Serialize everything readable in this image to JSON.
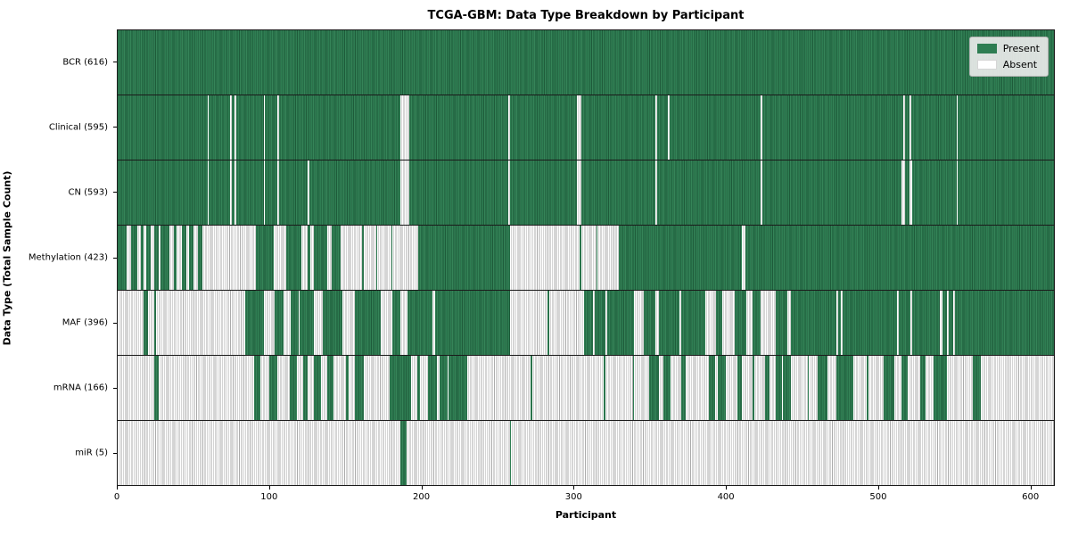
{
  "title": "TCGA-GBM: Data Type Breakdown by Participant",
  "axes": {
    "x_label": "Participant",
    "y_label": "Data Type (Total Sample Count)"
  },
  "legend": {
    "items": [
      {
        "label": "Present",
        "color": "#2e7d52"
      },
      {
        "label": "Absent",
        "color": "#ffffff"
      }
    ]
  },
  "colors": {
    "present": "#2e7d52",
    "present_edge": "#1e5b3a",
    "absent": "#ffffff",
    "absent_edge": "#ababab",
    "divider": "#1a1a1a",
    "legend_bg": "#eaeaea"
  },
  "chart_data": {
    "type": "heatmap",
    "title": "TCGA-GBM: Data Type Breakdown by Participant",
    "xlabel": "Participant",
    "ylabel": "Data Type (Total Sample Count)",
    "legend": [
      "Present",
      "Absent"
    ],
    "legend_position": "upper right",
    "n_participants": 616,
    "xlim": [
      0,
      616
    ],
    "x_ticks": [
      0,
      100,
      200,
      300,
      400,
      500,
      600
    ],
    "note": "runs are [value,count] pairs per participant index; 1=Present(green), 0=Absent(white)",
    "rows": [
      {
        "name": "BCR",
        "label": "BCR (616)",
        "present_count": 616,
        "runs": [
          [
            1,
            616
          ]
        ]
      },
      {
        "name": "Clinical",
        "label": "Clinical (595)",
        "present_count": 595,
        "runs": [
          [
            1,
            59
          ],
          [
            0,
            1
          ],
          [
            1,
            14
          ],
          [
            0,
            1
          ],
          [
            1,
            2
          ],
          [
            0,
            1
          ],
          [
            1,
            18
          ],
          [
            0,
            1
          ],
          [
            1,
            8
          ],
          [
            0,
            1
          ],
          [
            1,
            80
          ],
          [
            0,
            6
          ],
          [
            1,
            65
          ],
          [
            0,
            1
          ],
          [
            1,
            44
          ],
          [
            0,
            3
          ],
          [
            1,
            49
          ],
          [
            0,
            1
          ],
          [
            1,
            7
          ],
          [
            0,
            1
          ],
          [
            1,
            60
          ],
          [
            0,
            1
          ],
          [
            1,
            93
          ],
          [
            0,
            1
          ],
          [
            1,
            3
          ],
          [
            0,
            1
          ],
          [
            1,
            30
          ],
          [
            0,
            1
          ],
          [
            1,
            63
          ]
        ]
      },
      {
        "name": "CN",
        "label": "CN (593)",
        "present_count": 593,
        "runs": [
          [
            1,
            59
          ],
          [
            0,
            1
          ],
          [
            1,
            14
          ],
          [
            0,
            1
          ],
          [
            1,
            2
          ],
          [
            0,
            1
          ],
          [
            1,
            18
          ],
          [
            0,
            1
          ],
          [
            1,
            8
          ],
          [
            0,
            1
          ],
          [
            1,
            19
          ],
          [
            0,
            1
          ],
          [
            1,
            60
          ],
          [
            0,
            6
          ],
          [
            1,
            65
          ],
          [
            0,
            1
          ],
          [
            1,
            44
          ],
          [
            0,
            3
          ],
          [
            1,
            49
          ],
          [
            0,
            1
          ],
          [
            1,
            68
          ],
          [
            0,
            1
          ],
          [
            1,
            92
          ],
          [
            0,
            2
          ],
          [
            1,
            3
          ],
          [
            0,
            2
          ],
          [
            1,
            29
          ],
          [
            0,
            1
          ],
          [
            1,
            63
          ]
        ]
      },
      {
        "name": "Methylation",
        "label": "Methylation (423)",
        "present_count": 423,
        "runs": [
          [
            1,
            6
          ],
          [
            0,
            3
          ],
          [
            1,
            4
          ],
          [
            0,
            2
          ],
          [
            1,
            2
          ],
          [
            0,
            2
          ],
          [
            1,
            3
          ],
          [
            0,
            2
          ],
          [
            1,
            3
          ],
          [
            0,
            1
          ],
          [
            1,
            6
          ],
          [
            0,
            3
          ],
          [
            1,
            2
          ],
          [
            0,
            3
          ],
          [
            1,
            3
          ],
          [
            0,
            2
          ],
          [
            1,
            3
          ],
          [
            0,
            3
          ],
          [
            1,
            3
          ],
          [
            0,
            35
          ],
          [
            1,
            12
          ],
          [
            0,
            8
          ],
          [
            1,
            10
          ],
          [
            0,
            4
          ],
          [
            1,
            2
          ],
          [
            0,
            2
          ],
          [
            1,
            9
          ],
          [
            0,
            3
          ],
          [
            1,
            6
          ],
          [
            0,
            14
          ],
          [
            1,
            1
          ],
          [
            0,
            8
          ],
          [
            1,
            1
          ],
          [
            0,
            9
          ],
          [
            1,
            1
          ],
          [
            0,
            17
          ],
          [
            1,
            60
          ],
          [
            0,
            46
          ],
          [
            1,
            1
          ],
          [
            0,
            10
          ],
          [
            1,
            1
          ],
          [
            0,
            14
          ],
          [
            1,
            81
          ],
          [
            0,
            2
          ],
          [
            1,
            203
          ]
        ]
      },
      {
        "name": "MAF",
        "label": "MAF (396)",
        "present_count": 396,
        "runs": [
          [
            0,
            17
          ],
          [
            1,
            3
          ],
          [
            0,
            4
          ],
          [
            1,
            1
          ],
          [
            0,
            59
          ],
          [
            1,
            12
          ],
          [
            0,
            7
          ],
          [
            1,
            6
          ],
          [
            0,
            5
          ],
          [
            1,
            5
          ],
          [
            0,
            1
          ],
          [
            1,
            9
          ],
          [
            0,
            6
          ],
          [
            1,
            13
          ],
          [
            0,
            8
          ],
          [
            1,
            17
          ],
          [
            0,
            8
          ],
          [
            1,
            5
          ],
          [
            0,
            5
          ],
          [
            1,
            16
          ],
          [
            0,
            2
          ],
          [
            1,
            49
          ],
          [
            0,
            25
          ],
          [
            1,
            1
          ],
          [
            0,
            23
          ],
          [
            1,
            6
          ],
          [
            0,
            1
          ],
          [
            1,
            7
          ],
          [
            0,
            1
          ],
          [
            1,
            18
          ],
          [
            0,
            6
          ],
          [
            1,
            8
          ],
          [
            0,
            2
          ],
          [
            1,
            14
          ],
          [
            0,
            1
          ],
          [
            1,
            16
          ],
          [
            0,
            7
          ],
          [
            1,
            4
          ],
          [
            0,
            8
          ],
          [
            1,
            8
          ],
          [
            0,
            4
          ],
          [
            1,
            5
          ],
          [
            0,
            10
          ],
          [
            1,
            8
          ],
          [
            0,
            2
          ],
          [
            1,
            30
          ],
          [
            0,
            1
          ],
          [
            1,
            2
          ],
          [
            0,
            1
          ],
          [
            1,
            36
          ],
          [
            0,
            1
          ],
          [
            1,
            8
          ],
          [
            0,
            1
          ],
          [
            1,
            18
          ],
          [
            0,
            2
          ],
          [
            1,
            3
          ],
          [
            0,
            1
          ],
          [
            1,
            3
          ],
          [
            0,
            1
          ],
          [
            1,
            65
          ]
        ]
      },
      {
        "name": "mRNA",
        "label": "mRNA (166)",
        "present_count": 166,
        "runs": [
          [
            0,
            24
          ],
          [
            1,
            3
          ],
          [
            0,
            63
          ],
          [
            1,
            4
          ],
          [
            0,
            6
          ],
          [
            1,
            5
          ],
          [
            0,
            8
          ],
          [
            1,
            5
          ],
          [
            0,
            4
          ],
          [
            1,
            3
          ],
          [
            0,
            4
          ],
          [
            1,
            5
          ],
          [
            0,
            4
          ],
          [
            1,
            4
          ],
          [
            0,
            8
          ],
          [
            1,
            2
          ],
          [
            0,
            4
          ],
          [
            1,
            6
          ],
          [
            0,
            17
          ],
          [
            1,
            14
          ],
          [
            0,
            4
          ],
          [
            1,
            2
          ],
          [
            0,
            5
          ],
          [
            1,
            6
          ],
          [
            0,
            2
          ],
          [
            1,
            5
          ],
          [
            0,
            1
          ],
          [
            1,
            12
          ],
          [
            0,
            42
          ],
          [
            1,
            1
          ],
          [
            0,
            47
          ],
          [
            1,
            1
          ],
          [
            0,
            18
          ],
          [
            1,
            1
          ],
          [
            0,
            10
          ],
          [
            1,
            6
          ],
          [
            0,
            3
          ],
          [
            1,
            5
          ],
          [
            0,
            7
          ],
          [
            1,
            3
          ],
          [
            0,
            15
          ],
          [
            1,
            4
          ],
          [
            0,
            2
          ],
          [
            1,
            5
          ],
          [
            0,
            8
          ],
          [
            1,
            3
          ],
          [
            0,
            7
          ],
          [
            1,
            1
          ],
          [
            0,
            7
          ],
          [
            1,
            3
          ],
          [
            0,
            4
          ],
          [
            1,
            4
          ],
          [
            0,
            1
          ],
          [
            1,
            5
          ],
          [
            0,
            11
          ],
          [
            1,
            1
          ],
          [
            0,
            6
          ],
          [
            1,
            6
          ],
          [
            0,
            6
          ],
          [
            1,
            11
          ],
          [
            0,
            9
          ],
          [
            1,
            1
          ],
          [
            0,
            10
          ],
          [
            1,
            7
          ],
          [
            0,
            5
          ],
          [
            1,
            4
          ],
          [
            0,
            8
          ],
          [
            1,
            4
          ],
          [
            0,
            5
          ],
          [
            1,
            9
          ],
          [
            0,
            17
          ],
          [
            1,
            5
          ],
          [
            0,
            48
          ]
        ]
      },
      {
        "name": "miR",
        "label": "miR (5)",
        "present_count": 5,
        "runs": [
          [
            0,
            186
          ],
          [
            1,
            4
          ],
          [
            0,
            68
          ],
          [
            1,
            1
          ],
          [
            0,
            357
          ]
        ]
      }
    ]
  }
}
